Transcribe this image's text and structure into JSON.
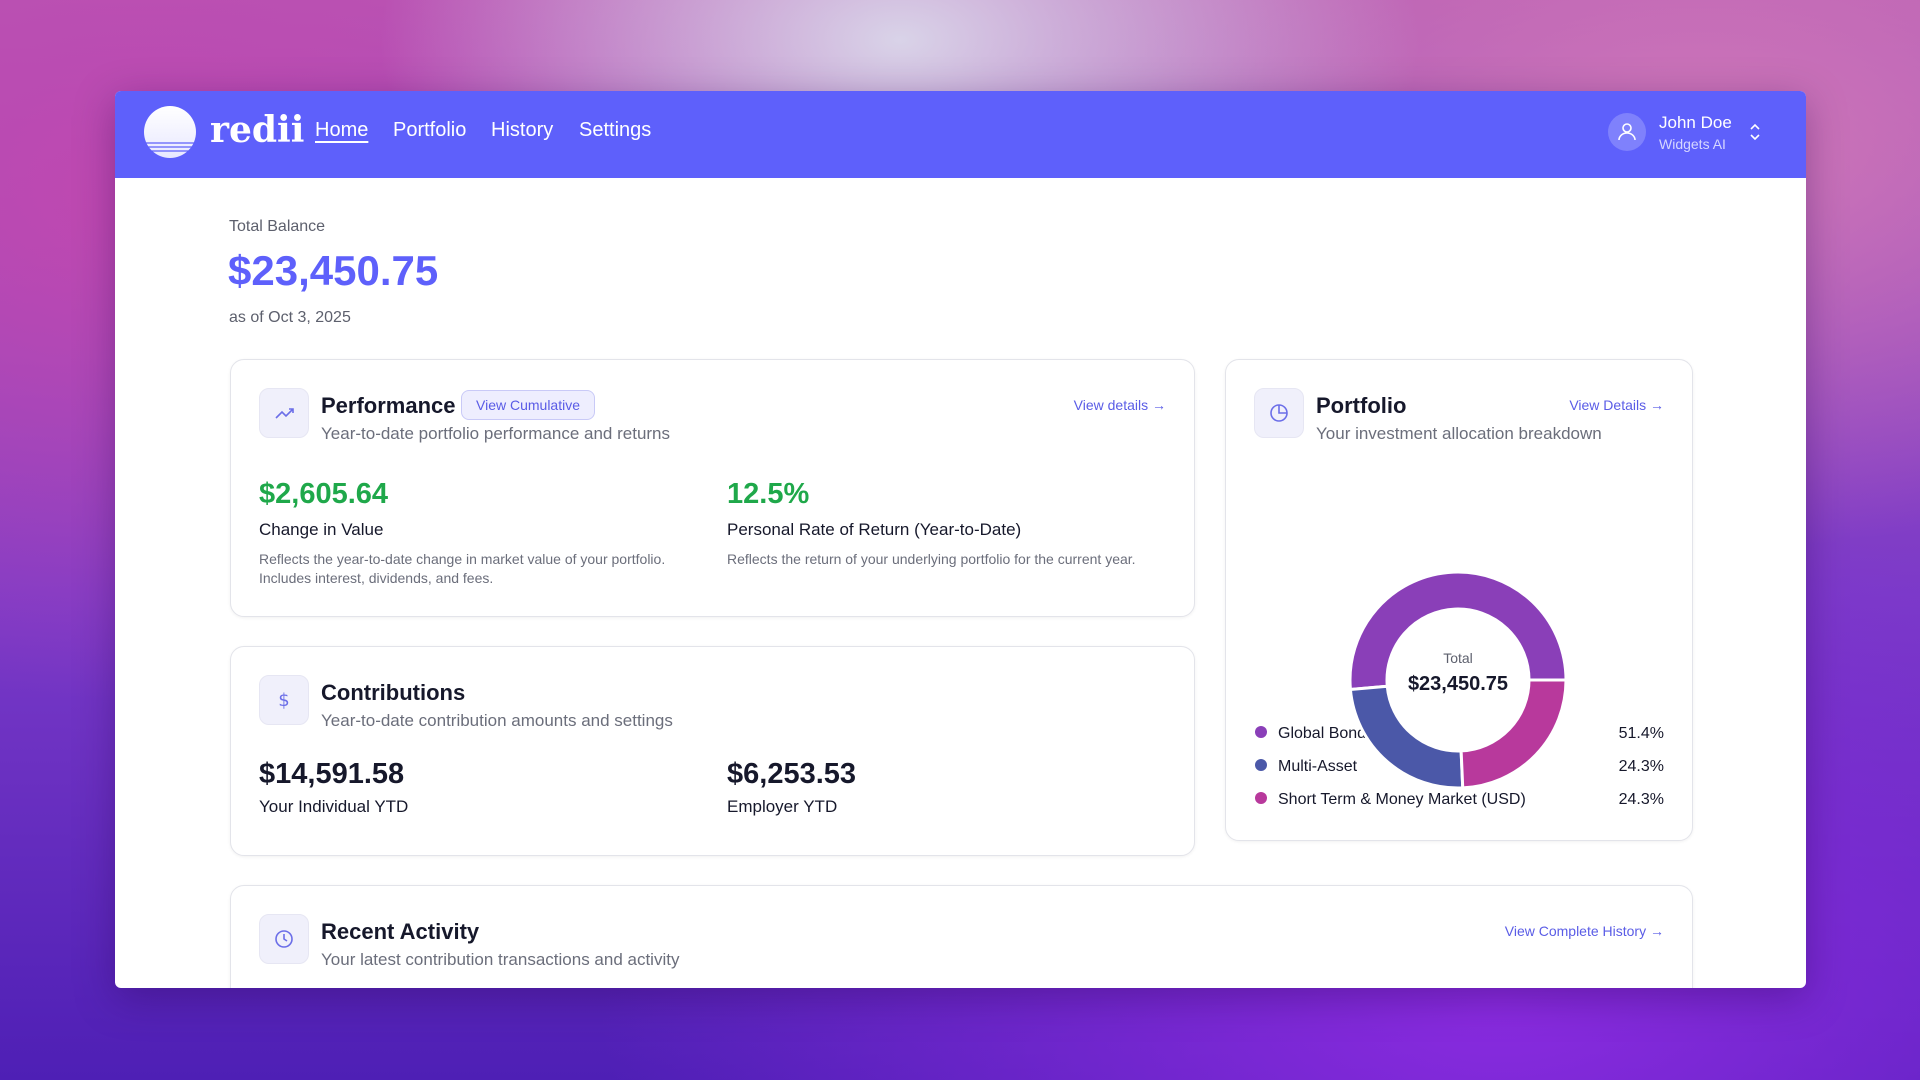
{
  "header": {
    "brand": "redii",
    "nav": [
      "Home",
      "Portfolio",
      "History",
      "Settings"
    ],
    "user": {
      "name": "John Doe",
      "org": "Widgets AI"
    }
  },
  "balance": {
    "label": "Total Balance",
    "amount": "$23,450.75",
    "date": "as of Oct 3, 2025"
  },
  "performance": {
    "title": "Performance",
    "badge": "View Cumulative",
    "link": "View details →",
    "subtitle": "Year-to-date portfolio performance and returns",
    "metrics": [
      {
        "value": "$2,605.64",
        "label": "Change in Value",
        "desc": "Reflects the year-to-date change in market value of your portfolio. Includes interest, dividends, and fees."
      },
      {
        "value": "12.5%",
        "label": "Personal Rate of Return (Year-to-Date)",
        "desc": "Reflects the return of your underlying portfolio for the current year."
      }
    ]
  },
  "contributions": {
    "title": "Contributions",
    "subtitle": "Year-to-date contribution amounts and settings",
    "metrics": [
      {
        "value": "$14,591.58",
        "label": "Your Individual YTD"
      },
      {
        "value": "$6,253.53",
        "label": "Employer YTD"
      }
    ]
  },
  "portfolio": {
    "title": "Portfolio",
    "link": "View Details →",
    "subtitle": "Your investment allocation breakdown"
  },
  "chart_data": {
    "type": "pie",
    "center_label": "Total",
    "center_value": "$23,450.75",
    "categories": [
      "Global Bonds",
      "Multi-Asset",
      "Short Term & Money Market (USD)"
    ],
    "values": [
      51.4,
      24.3,
      24.3
    ],
    "value_labels": [
      "51.4%",
      "24.3%",
      "24.3%"
    ],
    "colors": [
      "#8a3fb8",
      "#4b58a8",
      "#b8399c"
    ]
  },
  "activity": {
    "title": "Recent Activity",
    "subtitle": "Your latest contribution transactions and activity",
    "link": "View Complete History →"
  }
}
